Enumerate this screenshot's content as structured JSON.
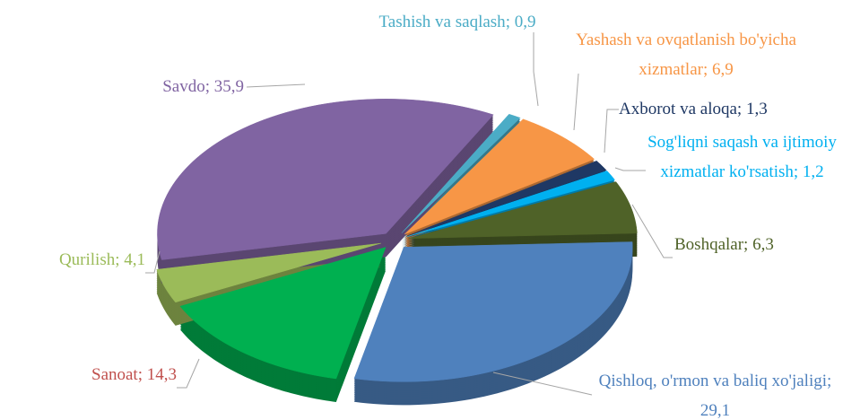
{
  "chart_data": {
    "type": "pie",
    "categories": [
      "Tashish va saqlash",
      "Yashash va ovqatlanish bo'yicha xizmatlar",
      "Axborot va aloqa",
      "Sog'liqni saqash va ijtimoiy xizmatlar ko'rsatish",
      "Boshqalar",
      "Qishloq, o'rmon va baliq xo'jaligi",
      "Sanoat",
      "Qurilish",
      "Savdo"
    ],
    "values": [
      0.9,
      6.9,
      1.3,
      1.2,
      6.3,
      29.1,
      14.3,
      4.1,
      35.9
    ],
    "value_labels": [
      "0,9",
      "6,9",
      "1,3",
      "1,2",
      "6,3",
      "29,1",
      "14,3",
      "4,1",
      "35,9"
    ],
    "label_separator": ";",
    "colors": [
      "#4bacc6",
      "#f79646",
      "#1f3864",
      "#00b0f0",
      "#4f6228",
      "#4f81bd",
      "#00b050",
      "#9bbb59",
      "#8064a2"
    ],
    "label_colors": [
      "#4bacc6",
      "#f79646",
      "#1f3864",
      "#00b0f0",
      "#4f6228",
      "#4f81bd",
      "#c0504d",
      "#9bbb59",
      "#8064a2"
    ]
  }
}
